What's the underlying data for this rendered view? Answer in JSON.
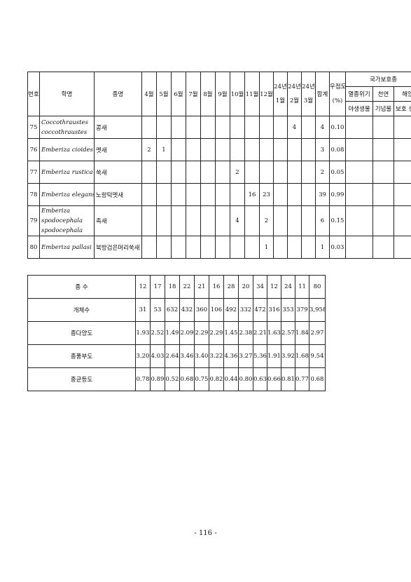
{
  "header": {
    "no": "번호",
    "scientific": "학명",
    "korean": "종명",
    "months": [
      "4월",
      "5월",
      "6월",
      "7월",
      "8월",
      "9월",
      "10월",
      "11월",
      "12월"
    ],
    "y24": [
      {
        "top": "24년",
        "bottom": "1월"
      },
      {
        "top": "24년",
        "bottom": "2월"
      },
      {
        "top": "24년",
        "bottom": "3월"
      }
    ],
    "total": "합계",
    "dominance_top": "우점도",
    "dominance_bottom": "(%)",
    "protected": "국가보호종",
    "protected_cols": [
      {
        "top": "멸종위기",
        "bottom": "야생생물"
      },
      {
        "top": "천연",
        "bottom": "기념물"
      },
      {
        "top": "해양",
        "bottom": "보호 생물"
      }
    ]
  },
  "rows": [
    {
      "no": "75",
      "sci1": "Coccothraustes",
      "sci2": "coccothraustes",
      "kor": "콩새",
      "cells": [
        "",
        "",
        "",
        "",
        "",
        "",
        "",
        "",
        "",
        "",
        "4",
        ""
      ],
      "total": "4",
      "dom": "0.10"
    },
    {
      "no": "76",
      "sci1": "Emberiza cioides",
      "sci2": "",
      "kor": "멧새",
      "cells": [
        "2",
        "1",
        "",
        "",
        "",
        "",
        "",
        "",
        "",
        "",
        "",
        ""
      ],
      "total": "3",
      "dom": "0.08"
    },
    {
      "no": "77",
      "sci1": "Emberiza rustica",
      "sci2": "",
      "kor": "쑥새",
      "cells": [
        "",
        "",
        "",
        "",
        "",
        "",
        "2",
        "",
        "",
        "",
        "",
        ""
      ],
      "total": "2",
      "dom": "0.05"
    },
    {
      "no": "78",
      "sci1": "Emberiza elegans",
      "sci2": "",
      "kor": "노랑턱멧새",
      "cells": [
        "",
        "",
        "",
        "",
        "",
        "",
        "",
        "16",
        "23",
        "",
        "",
        ""
      ],
      "total": "39",
      "dom": "0.99"
    },
    {
      "no": "79",
      "sci1": "Emberiza spodocephala",
      "sci2": "spodocephala",
      "kor": "촉새",
      "cells": [
        "",
        "",
        "",
        "",
        "",
        "",
        "4",
        "",
        "2",
        "",
        "",
        ""
      ],
      "total": "6",
      "dom": "0.15"
    },
    {
      "no": "80",
      "sci1": "Emberiza pallasi",
      "sci2": "",
      "kor": "북방검은머리쑥새",
      "cells": [
        "",
        "",
        "",
        "",
        "",
        "",
        "",
        "",
        "1",
        "",
        "",
        ""
      ],
      "total": "1",
      "dom": "0.03"
    }
  ],
  "stats": [
    {
      "label": "종 수",
      "values": [
        "12",
        "17",
        "18",
        "22",
        "21",
        "16",
        "28",
        "20",
        "34",
        "12",
        "24",
        "11",
        "80"
      ]
    },
    {
      "label": "개체수",
      "values": [
        "31",
        "53",
        "632",
        "432",
        "360",
        "106",
        "492",
        "332",
        "472",
        "316",
        "353",
        "379",
        "3,958"
      ]
    },
    {
      "label": "종다양도",
      "values": [
        "1.93",
        "2.52",
        "1.49",
        "2.09",
        "2.29",
        "2.29",
        "1.45",
        "2.38",
        "2.21",
        "1.63",
        "2.57",
        "1.84",
        "2.97"
      ]
    },
    {
      "label": "종풍부도",
      "values": [
        "3.20",
        "4.03",
        "2.64",
        "3.46",
        "3.40",
        "3.22",
        "4.36",
        "3.27",
        "5.36",
        "1.91",
        "3.92",
        "1.68",
        "9.54"
      ]
    },
    {
      "label": "종균등도",
      "values": [
        "0.78",
        "0.89",
        "0.52",
        "0.68",
        "0.75",
        "0.82",
        "0.44",
        "0.80",
        "0.63",
        "0.66",
        "0.81",
        "0.77",
        "0.68"
      ]
    }
  ],
  "page_number": "- 116 -"
}
